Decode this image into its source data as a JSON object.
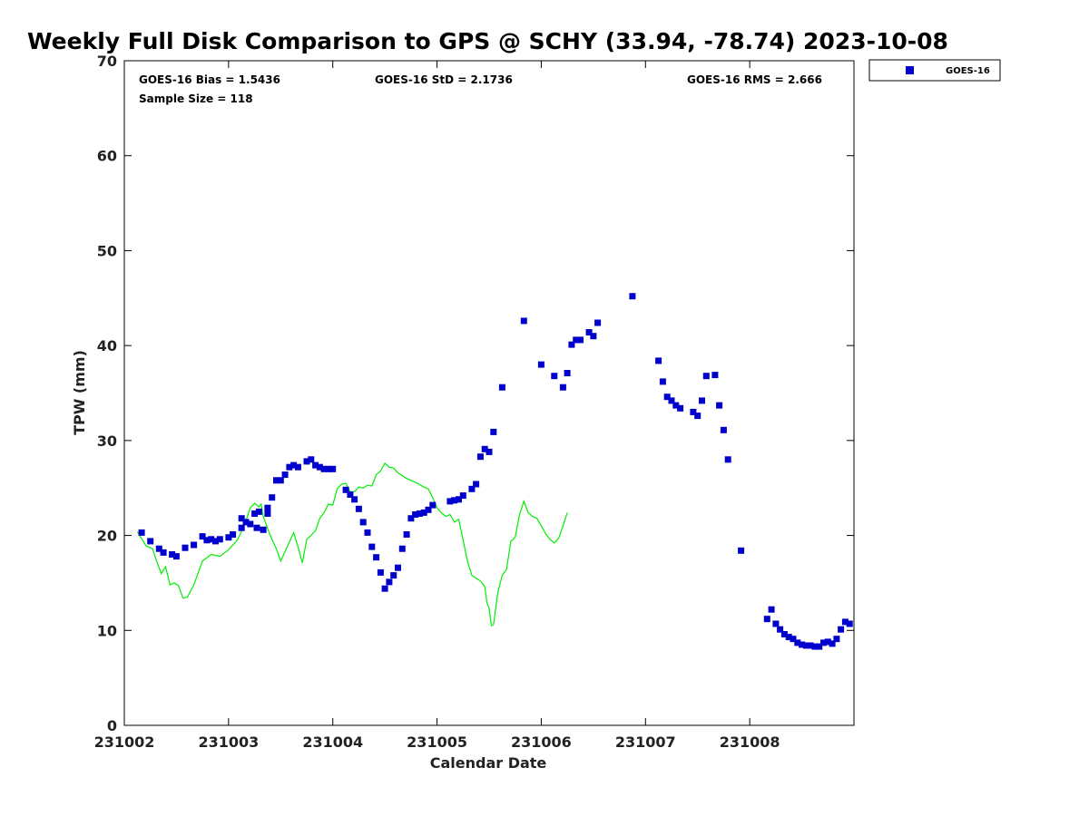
{
  "chart_data": {
    "type": "scatter",
    "title": "Weekly Full Disk Comparison to GPS @ SCHY (33.94, -78.74) 2023-10-08",
    "xlabel": "Calendar Date",
    "ylabel": "TPW (mm)",
    "ylim": [
      0,
      70
    ],
    "yticks": [
      "0",
      "10",
      "20",
      "30",
      "40",
      "50",
      "60",
      "70"
    ],
    "xlim": [
      "2023-10-02",
      "2023-10-09"
    ],
    "xticks": [
      {
        "date": "2023-10-02",
        "label": "231002"
      },
      {
        "date": "2023-10-03",
        "label": "231003"
      },
      {
        "date": "2023-10-04",
        "label": "231004"
      },
      {
        "date": "2023-10-05",
        "label": "231005"
      },
      {
        "date": "2023-10-06",
        "label": "231006"
      },
      {
        "date": "2023-10-07",
        "label": "231007"
      },
      {
        "date": "2023-10-08",
        "label": "231008"
      }
    ],
    "stats": {
      "bias": "GOES-16 Bias = 1.5436",
      "std": "GOES-16 StD = 2.1736",
      "rms": "GOES-16 RMS = 2.666",
      "sample": "Sample Size = 118"
    },
    "legend_position": "top-right, outside plot",
    "grid": false,
    "series": [
      {
        "name": "GOES-16",
        "marker": "square",
        "color": "#0000cc",
        "points": [
          [
            "2023-10-02T04:00",
            20.3
          ],
          [
            "2023-10-02T06:00",
            19.4
          ],
          [
            "2023-10-02T08:00",
            18.6
          ],
          [
            "2023-10-02T09:00",
            18.2
          ],
          [
            "2023-10-02T11:00",
            18.0
          ],
          [
            "2023-10-02T12:00",
            17.8
          ],
          [
            "2023-10-02T14:00",
            18.7
          ],
          [
            "2023-10-02T16:00",
            19.0
          ],
          [
            "2023-10-02T18:00",
            19.9
          ],
          [
            "2023-10-02T19:00",
            19.5
          ],
          [
            "2023-10-02T20:00",
            19.6
          ],
          [
            "2023-10-02T21:00",
            19.4
          ],
          [
            "2023-10-02T22:00",
            19.6
          ],
          [
            "2023-10-03T00:00",
            19.8
          ],
          [
            "2023-10-03T01:00",
            20.1
          ],
          [
            "2023-10-03T03:00",
            20.8
          ],
          [
            "2023-10-03T04:00",
            21.4
          ],
          [
            "2023-10-03T06:00",
            22.3
          ],
          [
            "2023-10-03T07:00",
            22.5
          ],
          [
            "2023-10-03T09:00",
            22.9
          ],
          [
            "2023-10-03T03:00",
            21.8
          ],
          [
            "2023-10-03T05:00",
            21.2
          ],
          [
            "2023-10-03T06:30",
            20.8
          ],
          [
            "2023-10-03T08:00",
            20.6
          ],
          [
            "2023-10-03T09:00",
            22.3
          ],
          [
            "2023-10-03T10:00",
            24.0
          ],
          [
            "2023-10-03T11:00",
            25.8
          ],
          [
            "2023-10-03T12:00",
            25.8
          ],
          [
            "2023-10-03T13:00",
            26.4
          ],
          [
            "2023-10-03T14:00",
            27.2
          ],
          [
            "2023-10-03T15:00",
            27.4
          ],
          [
            "2023-10-03T16:00",
            27.2
          ],
          [
            "2023-10-03T18:00",
            27.8
          ],
          [
            "2023-10-03T19:00",
            28.0
          ],
          [
            "2023-10-03T20:00",
            27.4
          ],
          [
            "2023-10-03T21:00",
            27.2
          ],
          [
            "2023-10-03T22:00",
            27.0
          ],
          [
            "2023-10-03T23:00",
            27.0
          ],
          [
            "2023-10-04T00:00",
            27.0
          ],
          [
            "2023-10-04T03:00",
            24.8
          ],
          [
            "2023-10-04T04:00",
            24.3
          ],
          [
            "2023-10-04T05:00",
            23.8
          ],
          [
            "2023-10-04T06:00",
            22.8
          ],
          [
            "2023-10-04T07:00",
            21.4
          ],
          [
            "2023-10-04T08:00",
            20.3
          ],
          [
            "2023-10-04T09:00",
            18.8
          ],
          [
            "2023-10-04T10:00",
            17.7
          ],
          [
            "2023-10-04T11:00",
            16.1
          ],
          [
            "2023-10-04T12:00",
            14.4
          ],
          [
            "2023-10-04T13:00",
            15.1
          ],
          [
            "2023-10-04T14:00",
            15.8
          ],
          [
            "2023-10-04T15:00",
            16.6
          ],
          [
            "2023-10-04T16:00",
            18.6
          ],
          [
            "2023-10-04T17:00",
            20.1
          ],
          [
            "2023-10-04T18:00",
            21.8
          ],
          [
            "2023-10-04T19:00",
            22.2
          ],
          [
            "2023-10-04T20:00",
            22.3
          ],
          [
            "2023-10-04T21:00",
            22.4
          ],
          [
            "2023-10-04T22:00",
            22.7
          ],
          [
            "2023-10-04T23:00",
            23.2
          ],
          [
            "2023-10-05T03:00",
            23.6
          ],
          [
            "2023-10-05T04:00",
            23.7
          ],
          [
            "2023-10-05T05:00",
            23.8
          ],
          [
            "2023-10-05T06:00",
            24.2
          ],
          [
            "2023-10-05T08:00",
            24.9
          ],
          [
            "2023-10-05T09:00",
            25.4
          ],
          [
            "2023-10-05T10:00",
            28.3
          ],
          [
            "2023-10-05T11:00",
            29.1
          ],
          [
            "2023-10-05T12:00",
            28.8
          ],
          [
            "2023-10-05T13:00",
            30.9
          ],
          [
            "2023-10-05T15:00",
            35.6
          ],
          [
            "2023-10-05T20:00",
            42.6
          ],
          [
            "2023-10-06T00:00",
            38.0
          ],
          [
            "2023-10-06T03:00",
            36.8
          ],
          [
            "2023-10-06T05:00",
            35.6
          ],
          [
            "2023-10-06T06:00",
            37.1
          ],
          [
            "2023-10-06T07:00",
            40.1
          ],
          [
            "2023-10-06T08:00",
            40.6
          ],
          [
            "2023-10-06T09:00",
            40.6
          ],
          [
            "2023-10-06T11:00",
            41.4
          ],
          [
            "2023-10-06T12:00",
            41.0
          ],
          [
            "2023-10-06T13:00",
            42.4
          ],
          [
            "2023-10-06T21:00",
            45.2
          ],
          [
            "2023-10-07T03:00",
            38.4
          ],
          [
            "2023-10-07T04:00",
            36.2
          ],
          [
            "2023-10-07T05:00",
            34.6
          ],
          [
            "2023-10-07T06:00",
            34.2
          ],
          [
            "2023-10-07T07:00",
            33.7
          ],
          [
            "2023-10-07T08:00",
            33.4
          ],
          [
            "2023-10-07T11:00",
            33.0
          ],
          [
            "2023-10-07T12:00",
            32.6
          ],
          [
            "2023-10-07T13:00",
            34.2
          ],
          [
            "2023-10-07T14:00",
            36.8
          ],
          [
            "2023-10-07T16:00",
            36.9
          ],
          [
            "2023-10-07T17:00",
            33.7
          ],
          [
            "2023-10-07T18:00",
            31.1
          ],
          [
            "2023-10-07T19:00",
            28.0
          ],
          [
            "2023-10-07T22:00",
            18.4
          ],
          [
            "2023-10-08T04:00",
            11.2
          ],
          [
            "2023-10-08T05:00",
            12.2
          ],
          [
            "2023-10-08T06:00",
            10.7
          ],
          [
            "2023-10-08T07:00",
            10.1
          ],
          [
            "2023-10-08T08:00",
            9.6
          ],
          [
            "2023-10-08T09:00",
            9.3
          ],
          [
            "2023-10-08T10:00",
            9.1
          ],
          [
            "2023-10-08T11:00",
            8.7
          ],
          [
            "2023-10-08T12:00",
            8.5
          ],
          [
            "2023-10-08T13:00",
            8.4
          ],
          [
            "2023-10-08T14:00",
            8.4
          ],
          [
            "2023-10-08T15:00",
            8.3
          ],
          [
            "2023-10-08T16:00",
            8.3
          ],
          [
            "2023-10-08T17:00",
            8.7
          ],
          [
            "2023-10-08T18:00",
            8.8
          ],
          [
            "2023-10-08T19:00",
            8.6
          ],
          [
            "2023-10-08T20:00",
            9.1
          ],
          [
            "2023-10-08T21:00",
            10.1
          ],
          [
            "2023-10-08T22:00",
            10.9
          ],
          [
            "2023-10-08T23:00",
            10.7
          ]
        ]
      },
      {
        "marker": "line",
        "color": "#00ee00",
        "points": [
          [
            "2023-10-02T03:00",
            20.4
          ],
          [
            "2023-10-02T05:00",
            18.9
          ],
          [
            "2023-10-02T06:30",
            18.6
          ],
          [
            "2023-10-02T07:30",
            17.2
          ],
          [
            "2023-10-02T08:30",
            16.0
          ],
          [
            "2023-10-02T09:30",
            16.7
          ],
          [
            "2023-10-02T10:30",
            14.8
          ],
          [
            "2023-10-02T11:30",
            15.0
          ],
          [
            "2023-10-02T12:30",
            14.7
          ],
          [
            "2023-10-02T13:30",
            13.4
          ],
          [
            "2023-10-02T14:30",
            13.5
          ],
          [
            "2023-10-02T16:00",
            14.8
          ],
          [
            "2023-10-02T18:00",
            17.3
          ],
          [
            "2023-10-02T20:00",
            18.0
          ],
          [
            "2023-10-02T22:00",
            17.8
          ],
          [
            "2023-10-03T00:00",
            18.5
          ],
          [
            "2023-10-03T02:00",
            19.5
          ],
          [
            "2023-10-03T03:30",
            20.9
          ],
          [
            "2023-10-03T05:00",
            22.9
          ],
          [
            "2023-10-03T06:00",
            23.4
          ],
          [
            "2023-10-03T07:00",
            23.0
          ],
          [
            "2023-10-03T07:30",
            23.3
          ],
          [
            "2023-10-03T08:00",
            22.0
          ],
          [
            "2023-10-03T09:30",
            20.1
          ],
          [
            "2023-10-03T11:00",
            18.6
          ],
          [
            "2023-10-03T12:00",
            17.3
          ],
          [
            "2023-10-03T13:30",
            18.8
          ],
          [
            "2023-10-03T15:00",
            20.3
          ],
          [
            "2023-10-03T16:00",
            18.8
          ],
          [
            "2023-10-03T17:00",
            17.1
          ],
          [
            "2023-10-03T18:00",
            19.6
          ],
          [
            "2023-10-03T19:00",
            20.0
          ],
          [
            "2023-10-03T20:00",
            20.5
          ],
          [
            "2023-10-03T21:00",
            21.8
          ],
          [
            "2023-10-03T22:00",
            22.4
          ],
          [
            "2023-10-03T23:00",
            23.3
          ],
          [
            "2023-10-04T00:00",
            23.2
          ],
          [
            "2023-10-04T01:00",
            24.9
          ],
          [
            "2023-10-04T02:00",
            25.4
          ],
          [
            "2023-10-04T03:00",
            25.5
          ],
          [
            "2023-10-04T04:00",
            24.6
          ],
          [
            "2023-10-04T05:00",
            24.6
          ],
          [
            "2023-10-04T06:00",
            25.1
          ],
          [
            "2023-10-04T07:00",
            25.0
          ],
          [
            "2023-10-04T08:00",
            25.3
          ],
          [
            "2023-10-04T09:00",
            25.2
          ],
          [
            "2023-10-04T10:00",
            26.4
          ],
          [
            "2023-10-04T11:00",
            26.8
          ],
          [
            "2023-10-04T12:00",
            27.6
          ],
          [
            "2023-10-04T13:00",
            27.2
          ],
          [
            "2023-10-04T14:00",
            27.1
          ],
          [
            "2023-10-04T15:00",
            26.6
          ],
          [
            "2023-10-04T17:00",
            26.0
          ],
          [
            "2023-10-04T19:00",
            25.6
          ],
          [
            "2023-10-04T21:00",
            25.1
          ],
          [
            "2023-10-04T22:00",
            24.9
          ],
          [
            "2023-10-04T23:00",
            24.0
          ],
          [
            "2023-10-05T00:00",
            22.9
          ],
          [
            "2023-10-05T01:00",
            22.4
          ],
          [
            "2023-10-05T02:00",
            22.0
          ],
          [
            "2023-10-05T03:00",
            22.2
          ],
          [
            "2023-10-05T04:00",
            21.4
          ],
          [
            "2023-10-05T05:00",
            21.7
          ],
          [
            "2023-10-05T06:00",
            19.5
          ],
          [
            "2023-10-05T07:00",
            17.3
          ],
          [
            "2023-10-05T08:00",
            15.8
          ],
          [
            "2023-10-05T09:00",
            15.5
          ],
          [
            "2023-10-05T10:00",
            15.2
          ],
          [
            "2023-10-05T11:00",
            14.6
          ],
          [
            "2023-10-05T11:30",
            12.9
          ],
          [
            "2023-10-05T12:00",
            12.3
          ],
          [
            "2023-10-05T12:30",
            10.5
          ],
          [
            "2023-10-05T13:00",
            10.6
          ],
          [
            "2023-10-05T14:00",
            14.0
          ],
          [
            "2023-10-05T15:00",
            15.8
          ],
          [
            "2023-10-05T16:00",
            16.4
          ],
          [
            "2023-10-05T17:00",
            19.4
          ],
          [
            "2023-10-05T18:00",
            19.8
          ],
          [
            "2023-10-05T19:00",
            22.2
          ],
          [
            "2023-10-05T20:00",
            23.6
          ],
          [
            "2023-10-05T21:00",
            22.4
          ],
          [
            "2023-10-05T22:00",
            22.0
          ],
          [
            "2023-10-05T23:00",
            21.8
          ],
          [
            "2023-10-06T00:00",
            21.0
          ],
          [
            "2023-10-06T01:00",
            20.2
          ],
          [
            "2023-10-06T02:00",
            19.6
          ],
          [
            "2023-10-06T03:00",
            19.2
          ],
          [
            "2023-10-06T04:00",
            19.7
          ],
          [
            "2023-10-06T05:00",
            21.0
          ],
          [
            "2023-10-06T06:00",
            22.4
          ]
        ]
      }
    ],
    "legend": {
      "label": "GOES-16"
    }
  }
}
